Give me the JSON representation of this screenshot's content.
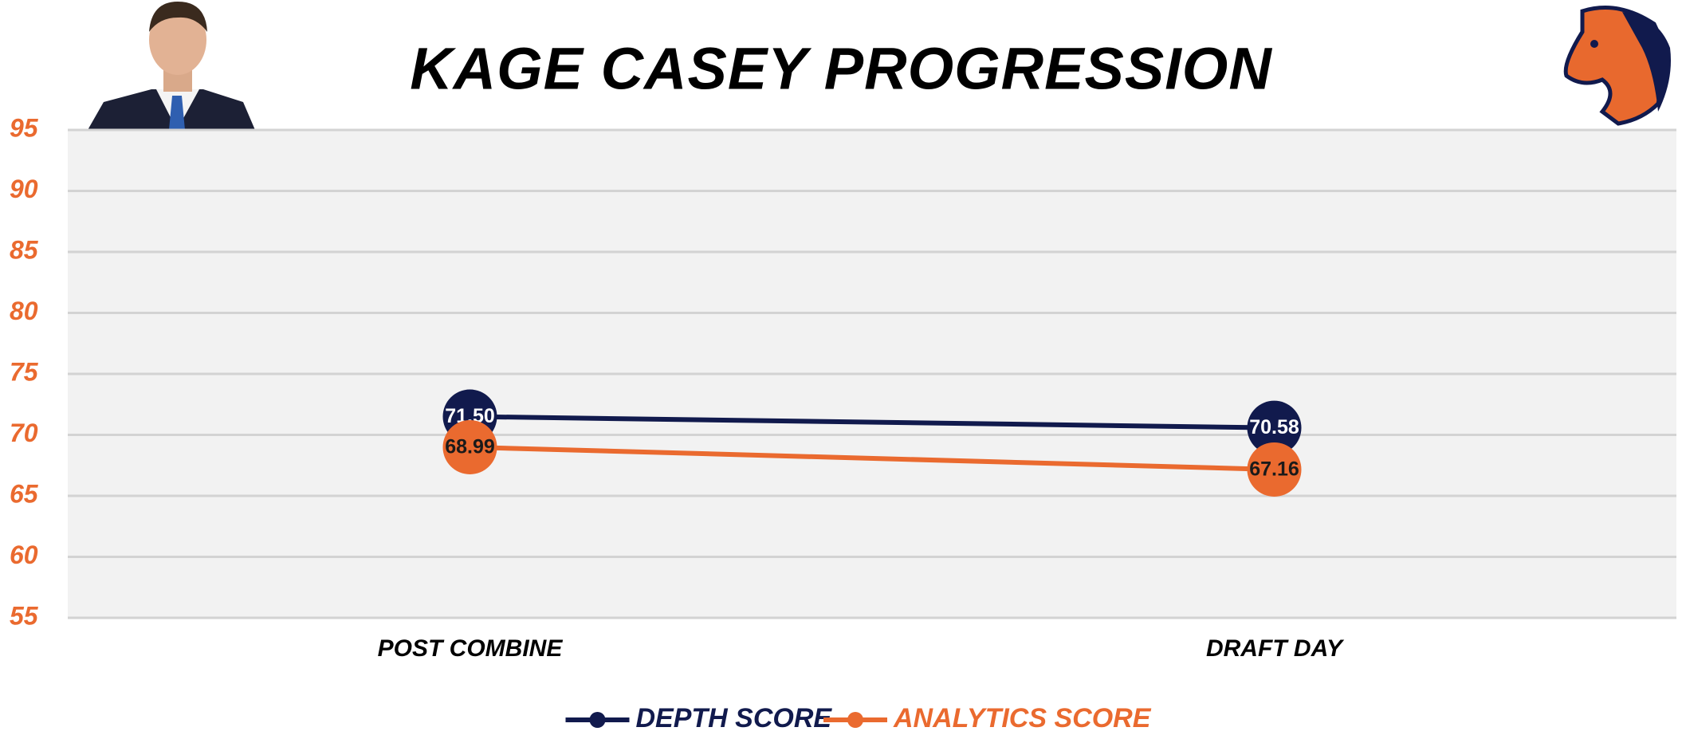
{
  "chart_data": {
    "type": "line",
    "title": "KAGE CASEY PROGRESSION",
    "categories": [
      "POST COMBINE",
      "DRAFT DAY"
    ],
    "series": [
      {
        "name": "DEPTH SCORE",
        "color": "#111a4d",
        "label_color": "#ffffff",
        "values": [
          71.5,
          70.58
        ],
        "value_labels": [
          "71.50",
          "70.58"
        ]
      },
      {
        "name": "ANALYTICS SCORE",
        "color": "#ea6a2f",
        "label_color": "#1a1a1a",
        "values": [
          68.99,
          67.16
        ],
        "value_labels": [
          "68.99",
          "67.16"
        ]
      }
    ],
    "ylim": [
      55,
      95
    ],
    "yticks": [
      55,
      60,
      65,
      70,
      75,
      80,
      85,
      90,
      95
    ],
    "tick_color": "#ea6a2f",
    "grid": true,
    "legend": "bottom"
  }
}
